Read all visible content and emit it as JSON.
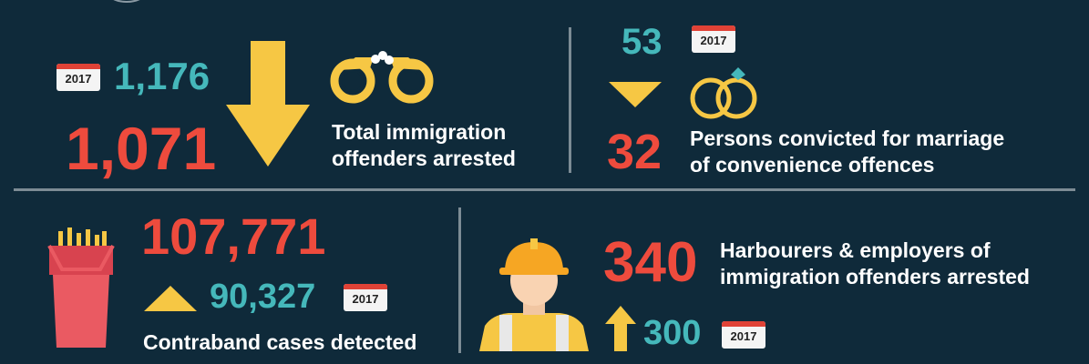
{
  "calendar_year": "2017",
  "arrests": {
    "prev_value": "1,176",
    "value": "1,071",
    "label_line1": "Total immigration",
    "label_line2": "offenders arrested"
  },
  "marriage": {
    "prev_value": "53",
    "value": "32",
    "label_line1": "Persons convicted for marriage",
    "label_line2": "of convenience offences"
  },
  "contraband": {
    "value": "107,771",
    "prev_value": "90,327",
    "label": "Contraband cases detected"
  },
  "harbourers": {
    "value": "340",
    "prev_value": "300",
    "label_line1": "Harbourers & employers of",
    "label_line2": "immigration offenders arrested"
  },
  "colors": {
    "background": "#0f2a3a",
    "red": "#ee4b3d",
    "teal": "#45b8bb",
    "yellow": "#f6c744"
  }
}
